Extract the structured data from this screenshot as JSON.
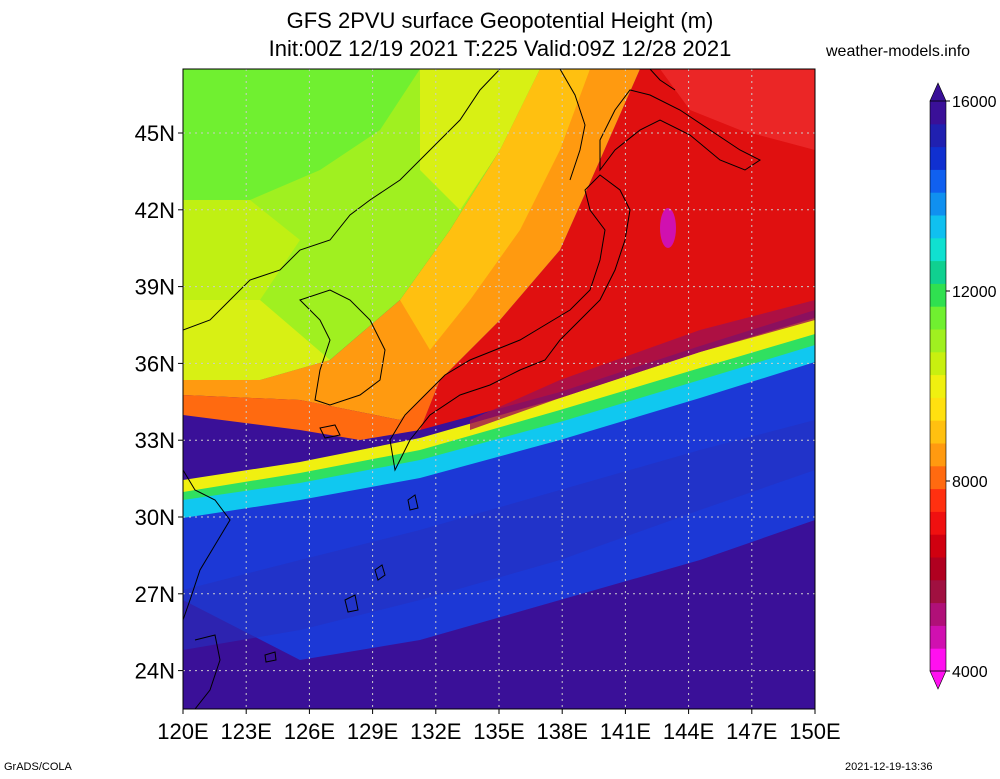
{
  "title": {
    "line1": "GFS 2PVU surface Geopotential Height (m)",
    "line2": "Init:00Z 12/19 2021 T:225 Valid:09Z 12/28 2021"
  },
  "site": "weather-models.info",
  "footer": {
    "left": "GrADS/COLA",
    "right": "2021-12-19-13:36"
  },
  "map": {
    "lon_range": [
      120,
      150
    ],
    "lat_range": [
      22.5,
      47.5
    ],
    "lat_labels": [
      {
        "label": "24N",
        "value": 24
      },
      {
        "label": "27N",
        "value": 27
      },
      {
        "label": "30N",
        "value": 30
      },
      {
        "label": "33N",
        "value": 33
      },
      {
        "label": "36N",
        "value": 36
      },
      {
        "label": "39N",
        "value": 39
      },
      {
        "label": "42N",
        "value": 42
      },
      {
        "label": "45N",
        "value": 45
      }
    ],
    "lon_labels": [
      {
        "label": "120E",
        "value": 120
      },
      {
        "label": "123E",
        "value": 123
      },
      {
        "label": "126E",
        "value": 126
      },
      {
        "label": "129E",
        "value": 129
      },
      {
        "label": "132E",
        "value": 132
      },
      {
        "label": "135E",
        "value": 135
      },
      {
        "label": "138E",
        "value": 138
      },
      {
        "label": "141E",
        "value": 141
      },
      {
        "label": "144E",
        "value": 144
      },
      {
        "label": "147E",
        "value": 147
      },
      {
        "label": "150E",
        "value": 150
      }
    ],
    "gridlines": "dotted"
  },
  "colorbar": {
    "min": 4000,
    "max": 16000,
    "tick_labels": [
      {
        "label": "4000",
        "value": 4000
      },
      {
        "label": "8000",
        "value": 8000
      },
      {
        "label": "12000",
        "value": 12000
      },
      {
        "label": "16000",
        "value": 16000
      }
    ],
    "colors": [
      "#ff10f0",
      "#d010b0",
      "#b01078",
      "#a01040",
      "#b00020",
      "#d00010",
      "#f01010",
      "#ff3010",
      "#ff6a10",
      "#ff9a10",
      "#ffc010",
      "#ffe010",
      "#f0f010",
      "#c8f010",
      "#a0f020",
      "#70f030",
      "#30e050",
      "#10d090",
      "#10e0d0",
      "#10c0f0",
      "#1090f0",
      "#1060f0",
      "#1030d0",
      "#2020b0",
      "#3a1098"
    ]
  }
}
